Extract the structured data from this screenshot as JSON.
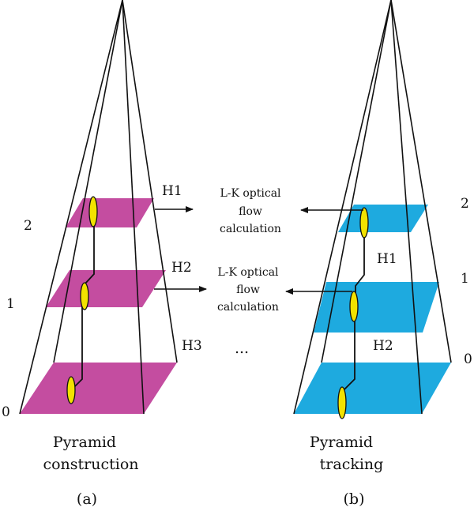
{
  "left": {
    "level_labels": [
      "2",
      "1",
      "0"
    ],
    "h_labels": [
      "H1",
      "H2",
      "H3"
    ],
    "caption": [
      "Pyramid",
      "construction"
    ],
    "tag": "(a)"
  },
  "right": {
    "level_labels": [
      "2",
      "1",
      "0"
    ],
    "h_labels": [
      "H1",
      "H2"
    ],
    "caption": [
      "Pyramid",
      "tracking"
    ],
    "tag": "(b)"
  },
  "middle": {
    "calc1": [
      "L-K optical",
      "flow",
      "calculation"
    ],
    "calc2": [
      "L-K optical",
      "flow",
      "calculation"
    ],
    "ellipsis": "..."
  },
  "colors": {
    "left_plane": "#c44da0",
    "right_plane": "#1eaadf",
    "feature_point": "#f2e200",
    "line": "#111111"
  }
}
